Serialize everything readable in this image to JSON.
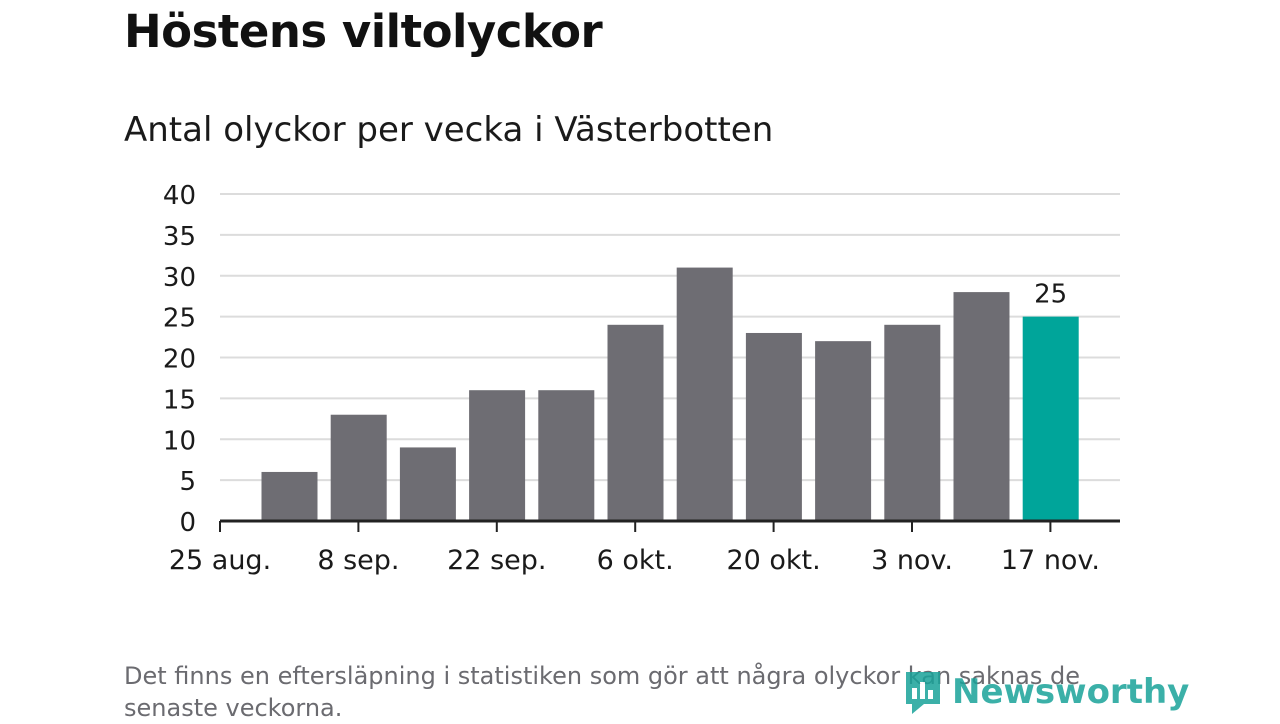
{
  "title": "Höstens viltolyckor",
  "subtitle": "Antal olyckor per vecka i Västerbotten",
  "footnote": "Det finns en eftersläpning i statistiken som gör att några olyckor kan saknas de senaste veckorna.",
  "brand": {
    "name": "Newsworthy",
    "icon": "newsworthy-logo-icon"
  },
  "colors": {
    "bar": "#6e6d73",
    "highlight": "#00a59a",
    "grid": "#dcdcdc",
    "axis": "#222222",
    "text": "#1a1a1a"
  },
  "chart_data": {
    "type": "bar",
    "title": "Antal olyckor per vecka i Västerbotten",
    "xlabel": "",
    "ylabel": "",
    "ylim": [
      0,
      40
    ],
    "yticks": [
      0,
      5,
      10,
      15,
      20,
      25,
      30,
      35,
      40
    ],
    "x_tick_labels": [
      "25 aug.",
      "8 sep.",
      "22 sep.",
      "6 okt.",
      "20 okt.",
      "3 nov.",
      "17 nov."
    ],
    "values": [
      6,
      13,
      9,
      16,
      16,
      24,
      31,
      23,
      22,
      24,
      28,
      25
    ],
    "highlight_index": 11,
    "highlight_label": "25",
    "grid": true
  }
}
